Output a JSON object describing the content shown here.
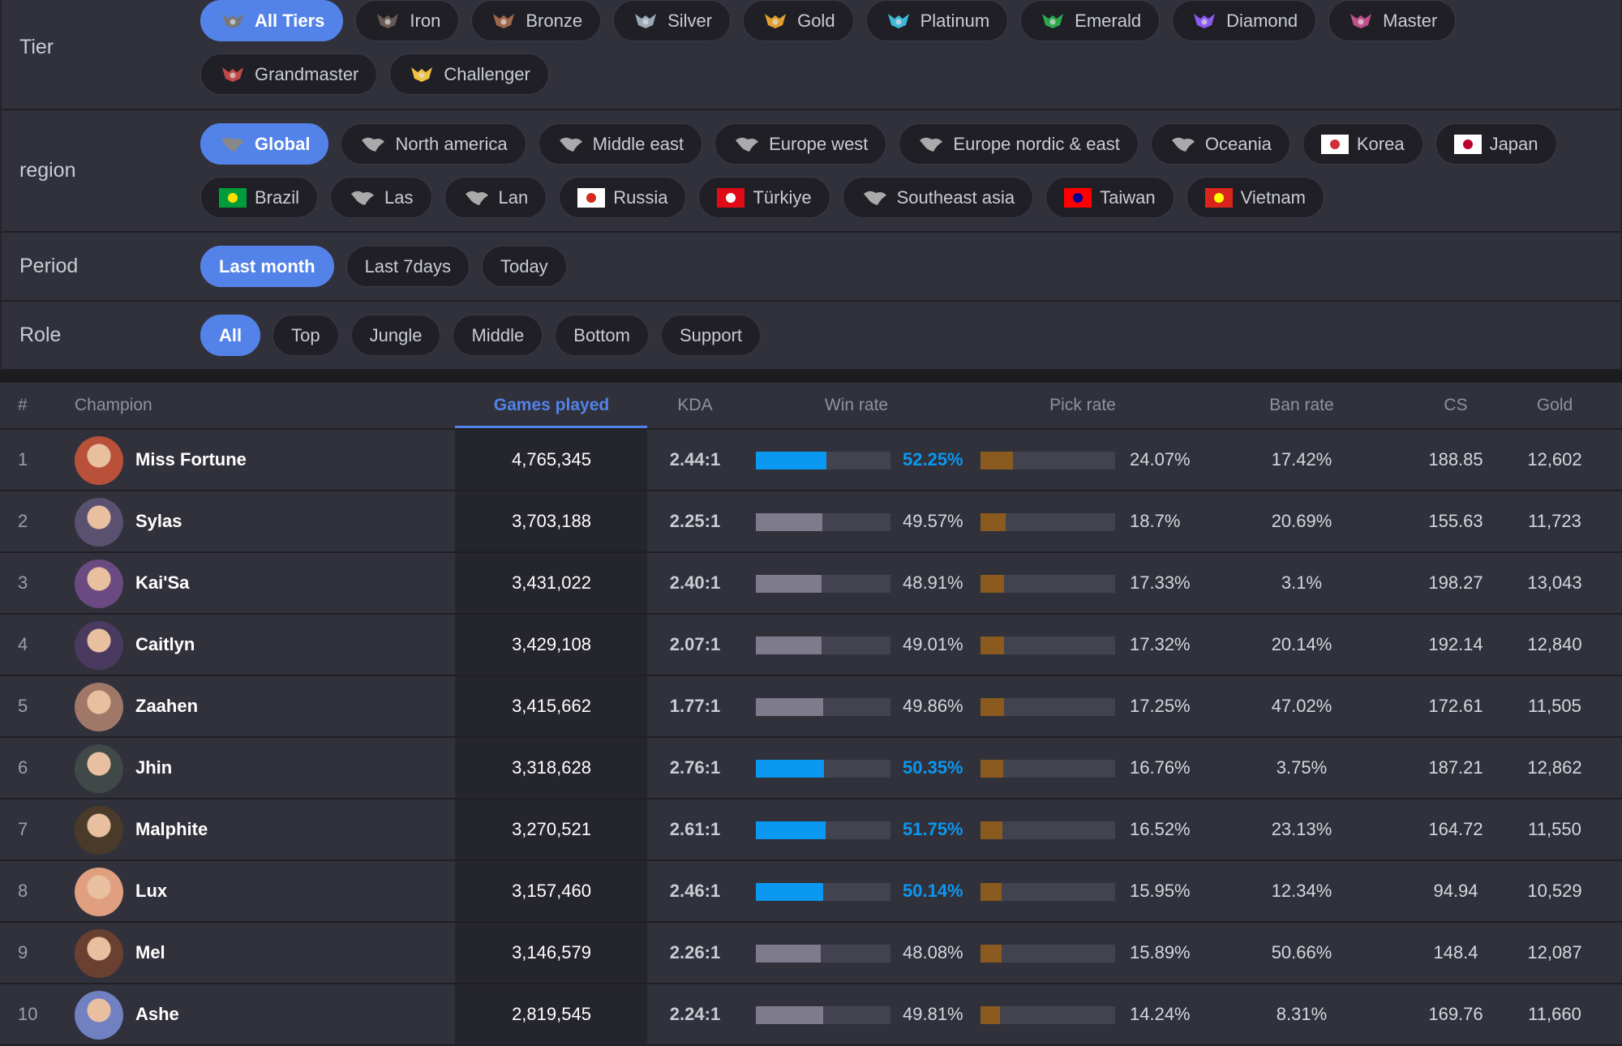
{
  "filters": [
    {
      "label": "Tier",
      "active": 0,
      "options": [
        "All Tiers",
        "Iron",
        "Bronze",
        "Silver",
        "Gold",
        "Platinum",
        "Emerald",
        "Diamond",
        "Master",
        "Grandmaster",
        "Challenger"
      ]
    },
    {
      "label": "region",
      "active": 0,
      "options": [
        "Global",
        "North america",
        "Middle east",
        "Europe west",
        "Europe nordic & east",
        "Oceania",
        "Korea",
        "Japan",
        "Brazil",
        "Las",
        "Lan",
        "Russia",
        "Türkiye",
        "Southeast asia",
        "Taiwan",
        "Vietnam"
      ]
    },
    {
      "label": "Period",
      "active": 0,
      "options": [
        "Last month",
        "Last 7days",
        "Today"
      ]
    },
    {
      "label": "Role",
      "active": 0,
      "options": [
        "All",
        "Top",
        "Jungle",
        "Middle",
        "Bottom",
        "Support"
      ]
    }
  ],
  "table": {
    "headers": [
      "#",
      "Champion",
      "Games played",
      "KDA",
      "Win rate",
      "Pick rate",
      "Ban rate",
      "CS",
      "Gold"
    ],
    "sorted": 2,
    "rows": [
      [
        "1",
        "Miss Fortune",
        "4,765,345",
        "2.44:1",
        "52.25%",
        "24.07%",
        "17.42%",
        "188.85",
        "12,602"
      ],
      [
        "2",
        "Sylas",
        "3,703,188",
        "2.25:1",
        "49.57%",
        "18.7%",
        "20.69%",
        "155.63",
        "11,723"
      ],
      [
        "3",
        "Kai'Sa",
        "3,431,022",
        "2.40:1",
        "48.91%",
        "17.33%",
        "3.1%",
        "198.27",
        "13,043"
      ],
      [
        "4",
        "Caitlyn",
        "3,429,108",
        "2.07:1",
        "49.01%",
        "17.32%",
        "20.14%",
        "192.14",
        "12,840"
      ],
      [
        "5",
        "Zaahen",
        "3,415,662",
        "1.77:1",
        "49.86%",
        "17.25%",
        "47.02%",
        "172.61",
        "11,505"
      ],
      [
        "6",
        "Jhin",
        "3,318,628",
        "2.76:1",
        "50.35%",
        "16.76%",
        "3.75%",
        "187.21",
        "12,862"
      ],
      [
        "7",
        "Malphite",
        "3,270,521",
        "2.61:1",
        "51.75%",
        "16.52%",
        "23.13%",
        "164.72",
        "11,550"
      ],
      [
        "8",
        "Lux",
        "3,157,460",
        "2.46:1",
        "50.14%",
        "15.95%",
        "12.34%",
        "94.94",
        "10,529"
      ],
      [
        "9",
        "Mel",
        "3,146,579",
        "2.26:1",
        "48.08%",
        "15.89%",
        "50.66%",
        "148.4",
        "12,087"
      ],
      [
        "10",
        "Ashe",
        "2,819,545",
        "2.24:1",
        "49.81%",
        "14.24%",
        "8.31%",
        "169.76",
        "11,660"
      ]
    ]
  }
}
